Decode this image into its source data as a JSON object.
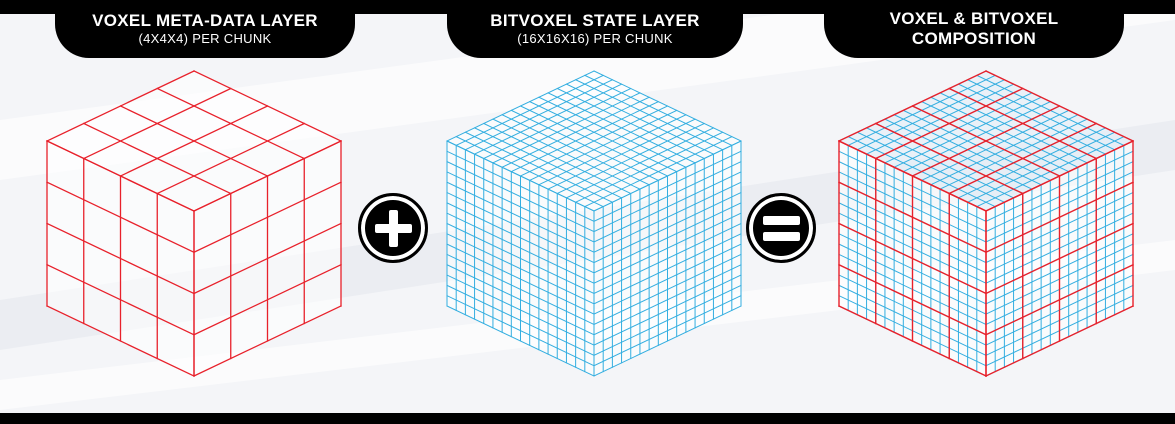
{
  "panels": [
    {
      "title": "VOXEL META-DATA LAYER",
      "subtitle": "(4X4X4) PER CHUNK"
    },
    {
      "title": "BITVOXEL STATE LAYER",
      "subtitle": "(16X16X16) PER CHUNK"
    },
    {
      "title": "VOXEL & BITVOXEL",
      "subtitle": "COMPOSITION"
    }
  ],
  "operators": {
    "first": "plus-icon",
    "second": "equals-icon"
  },
  "cubes": {
    "meta": {
      "divisions": 4,
      "color": "#e8212b"
    },
    "state": {
      "divisions": 16,
      "color": "#33aee0"
    },
    "composition": {
      "coarse_divisions": 4,
      "fine_divisions": 16
    }
  },
  "colors": {
    "bar": "#000000",
    "background": "#f4f5f8"
  }
}
